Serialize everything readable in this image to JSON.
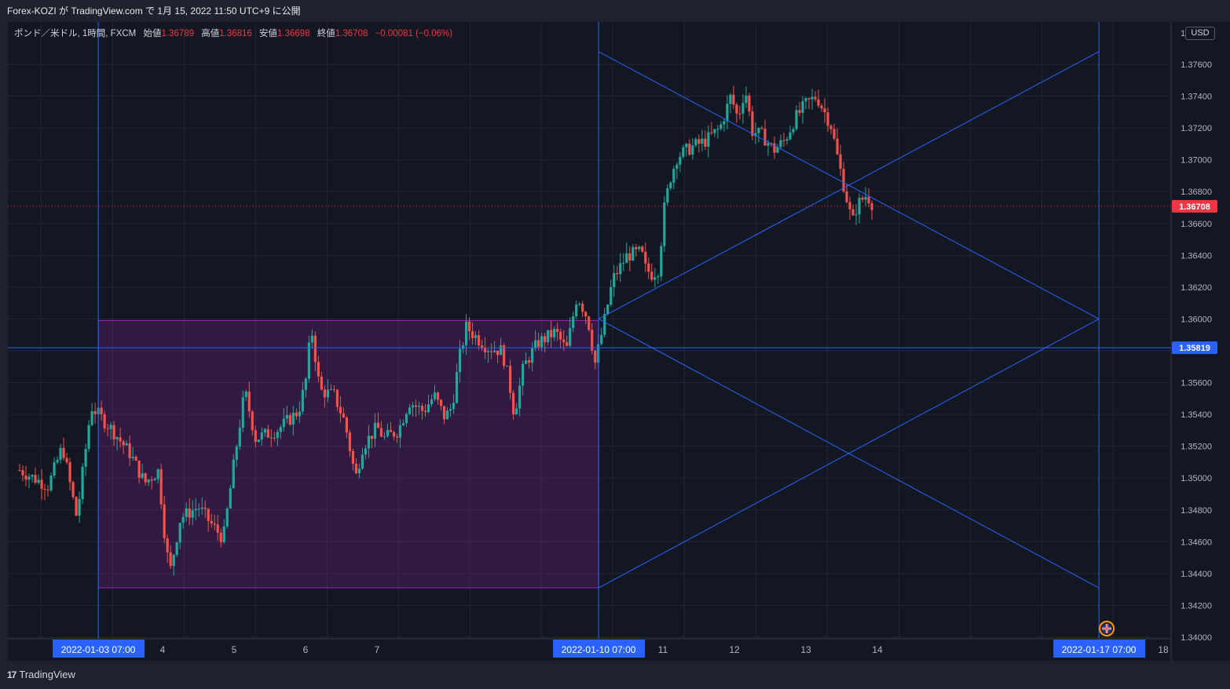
{
  "header": {
    "publish_line": "Forex-KOZI が TradingView.com で 1月 15, 2022 11:50 UTC+9 に公開"
  },
  "legend": {
    "symbol": "ポンド／米ドル, 1時間, FXCM",
    "open_label": "始値",
    "open_value": "1.36789",
    "high_label": "高値",
    "high_value": "1.36816",
    "low_label": "安値",
    "low_value": "1.36698",
    "close_label": "終値",
    "close_value": "1.36708",
    "change": "−0.00081 (−0.06%)"
  },
  "currency_button": "USD",
  "footer": {
    "brand": "TradingView",
    "logo": "17"
  },
  "colors": {
    "background": "#131722",
    "up": "#26a69a",
    "down": "#ef5350",
    "drawing": "#2962ff",
    "rectangle_border": "#9c27b0",
    "rectangle_fill": "#9c27b0",
    "last_price_badge": "#f23645"
  },
  "chart_data": {
    "type": "candlestick",
    "symbol": "GBP/USD",
    "timeframe": "1H",
    "y_axis": {
      "min": 1.34,
      "max": 1.378,
      "position": "right",
      "ticks": [
        "1.34000",
        "1.34200",
        "1.34400",
        "1.34600",
        "1.34800",
        "1.35000",
        "1.35200",
        "1.35400",
        "1.35600",
        "1.35800",
        "1.36000",
        "1.36200",
        "1.36400",
        "1.36600",
        "1.36800",
        "1.37000",
        "1.37200",
        "1.37400",
        "1.37600"
      ],
      "top_label": "1."
    },
    "x_axis": {
      "labels": [
        {
          "text": "4",
          "x": 4.0
        },
        {
          "text": "5",
          "x": 5.0
        },
        {
          "text": "6",
          "x": 6.0
        },
        {
          "text": "7",
          "x": 7.0
        },
        {
          "text": "11",
          "x": 11.0
        },
        {
          "text": "12",
          "x": 12.0
        },
        {
          "text": "13",
          "x": 13.0
        },
        {
          "text": "14",
          "x": 14.0
        },
        {
          "text": "18",
          "x": 18.0
        }
      ],
      "highlighted_labels": [
        {
          "text": "2022-01-03   07:00",
          "x": 3.1
        },
        {
          "text": "2022-01-10   07:00",
          "x": 10.1
        },
        {
          "text": "2022-01-17   07:00",
          "x": 17.1
        }
      ]
    },
    "last_price": {
      "value": 1.36708,
      "label": "1.36708"
    },
    "horizontal_line": {
      "value": 1.35819,
      "label": "1.35819"
    },
    "vertical_lines": [
      3.1,
      10.1,
      17.1
    ],
    "rectangle": {
      "x1": 3.1,
      "x2": 10.1,
      "y_top": 1.3599,
      "y_bottom": 1.3431
    },
    "trend_lines": [
      {
        "x1": 10.1,
        "y1": 1.3768,
        "x2": 17.1,
        "y2": 1.36
      },
      {
        "x1": 10.1,
        "y1": 1.36,
        "x2": 17.1,
        "y2": 1.3768
      },
      {
        "x1": 10.1,
        "y1": 1.36,
        "x2": 17.1,
        "y2": 1.3431
      },
      {
        "x1": 10.1,
        "y1": 1.3431,
        "x2": 17.1,
        "y2": 1.36
      }
    ],
    "path_points": [
      [
        2.0,
        1.3505
      ],
      [
        2.4,
        1.3495
      ],
      [
        2.6,
        1.352
      ],
      [
        2.8,
        1.3475
      ],
      [
        3.0,
        1.3545
      ],
      [
        3.3,
        1.353
      ],
      [
        3.55,
        1.3515
      ],
      [
        3.75,
        1.3497
      ],
      [
        3.95,
        1.3505
      ],
      [
        4.0,
        1.3475
      ],
      [
        4.1,
        1.344
      ],
      [
        4.25,
        1.3475
      ],
      [
        4.5,
        1.3482
      ],
      [
        4.7,
        1.347
      ],
      [
        4.85,
        1.3462
      ],
      [
        5.0,
        1.351
      ],
      [
        5.15,
        1.3555
      ],
      [
        5.3,
        1.3525
      ],
      [
        5.6,
        1.353
      ],
      [
        5.9,
        1.3542
      ],
      [
        6.0,
        1.356
      ],
      [
        6.08,
        1.3595
      ],
      [
        6.2,
        1.3555
      ],
      [
        6.4,
        1.3552
      ],
      [
        6.55,
        1.3535
      ],
      [
        6.7,
        1.35
      ],
      [
        6.8,
        1.352
      ],
      [
        7.0,
        1.3532
      ],
      [
        7.1,
        1.3525
      ],
      [
        7.3,
        1.353
      ],
      [
        7.45,
        1.3548
      ],
      [
        7.65,
        1.3542
      ],
      [
        7.8,
        1.3552
      ],
      [
        7.95,
        1.3538
      ],
      [
        8.05,
        1.3545
      ],
      [
        8.15,
        1.3575
      ],
      [
        8.25,
        1.3595
      ],
      [
        8.4,
        1.3588
      ],
      [
        8.55,
        1.3582
      ],
      [
        8.75,
        1.358
      ],
      [
        8.85,
        1.356
      ],
      [
        8.92,
        1.354
      ],
      [
        9.05,
        1.357
      ],
      [
        9.25,
        1.3585
      ],
      [
        9.5,
        1.3592
      ],
      [
        9.65,
        1.358
      ],
      [
        9.8,
        1.3615
      ],
      [
        9.95,
        1.36
      ],
      [
        10.05,
        1.3572
      ],
      [
        10.15,
        1.3592
      ],
      [
        10.3,
        1.3625
      ],
      [
        10.5,
        1.364
      ],
      [
        10.7,
        1.3642
      ],
      [
        10.75,
        1.3632
      ],
      [
        10.85,
        1.3628
      ],
      [
        10.95,
        1.3632
      ],
      [
        11.0,
        1.3665
      ],
      [
        11.1,
        1.3688
      ],
      [
        11.2,
        1.3702
      ],
      [
        11.4,
        1.3708
      ],
      [
        11.6,
        1.3712
      ],
      [
        11.8,
        1.372
      ],
      [
        11.95,
        1.374
      ],
      [
        12.05,
        1.3726
      ],
      [
        12.15,
        1.3745
      ],
      [
        12.25,
        1.3718
      ],
      [
        12.4,
        1.3715
      ],
      [
        12.55,
        1.3706
      ],
      [
        12.7,
        1.3712
      ],
      [
        12.85,
        1.3726
      ],
      [
        13.0,
        1.3735
      ],
      [
        13.15,
        1.374
      ],
      [
        13.35,
        1.3722
      ],
      [
        13.45,
        1.37
      ],
      [
        13.55,
        1.368
      ],
      [
        13.65,
        1.366
      ],
      [
        13.72,
        1.3672
      ],
      [
        13.85,
        1.3678
      ],
      [
        13.95,
        1.3671
      ]
    ]
  }
}
